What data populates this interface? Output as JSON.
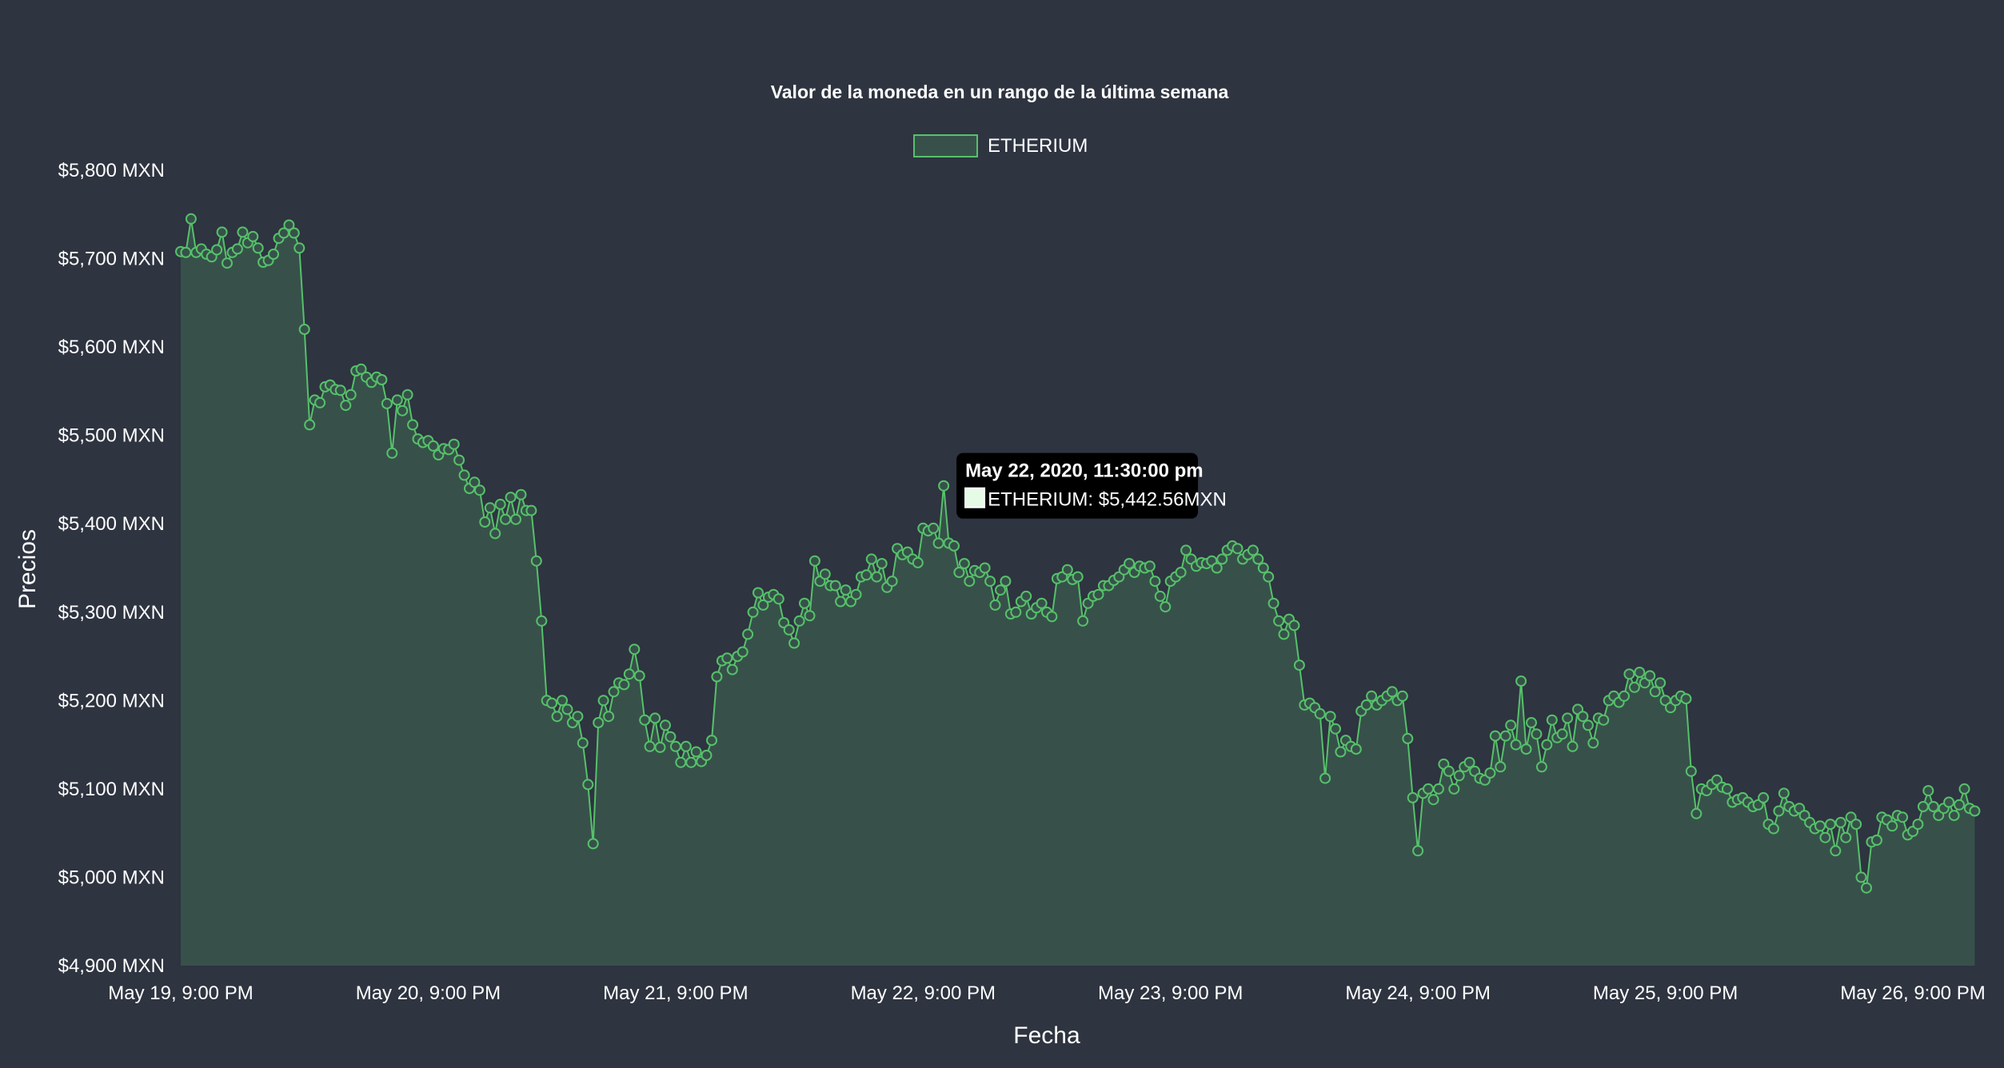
{
  "colors": {
    "background": "#2e3440",
    "line": "#56c16a",
    "fill": "#37514a",
    "tooltip_bg": "#000000",
    "tooltip_swatch": "#e6fbe6"
  },
  "chart_data": {
    "type": "area",
    "title": "Valor de la moneda en un rango de la última semana",
    "xlabel": "Fecha",
    "ylabel": "Precios",
    "legend": {
      "position": "top",
      "entries": [
        "ETHERIUM"
      ]
    },
    "ylim": [
      4900,
      5800
    ],
    "y_ticks": [
      "$5,800 MXN",
      "$5,700 MXN",
      "$5,600 MXN",
      "$5,500 MXN",
      "$5,400 MXN",
      "$5,300 MXN",
      "$5,200 MXN",
      "$5,100 MXN",
      "$5,000 MXN",
      "$4,900 MXN"
    ],
    "x_ticks": [
      "May 19, 9:00 PM",
      "May 20, 9:00 PM",
      "May 21, 9:00 PM",
      "May 22, 9:00 PM",
      "May 23, 9:00 PM",
      "May 24, 9:00 PM",
      "May 25, 9:00 PM",
      "May 26, 9:00 PM"
    ],
    "grid": false,
    "series": [
      {
        "name": "ETHERIUM",
        "sampling": "every 30 minutes",
        "values": [
          5708,
          5707,
          5745,
          5707,
          5711,
          5705,
          5702,
          5710,
          5730,
          5695,
          5707,
          5711,
          5730,
          5718,
          5725,
          5712,
          5696,
          5698,
          5705,
          5723,
          5729,
          5738,
          5729,
          5712,
          5620,
          5512,
          5540,
          5537,
          5555,
          5557,
          5552,
          5551,
          5534,
          5546,
          5573,
          5575,
          5566,
          5560,
          5566,
          5563,
          5536,
          5480,
          5540,
          5528,
          5546,
          5512,
          5496,
          5492,
          5494,
          5488,
          5478,
          5485,
          5484,
          5490,
          5472,
          5455,
          5440,
          5447,
          5438,
          5402,
          5418,
          5389,
          5422,
          5405,
          5430,
          5405,
          5433,
          5415,
          5415,
          5358,
          5290,
          5200,
          5197,
          5182,
          5200,
          5190,
          5175,
          5182,
          5152,
          5105,
          5038,
          5175,
          5200,
          5182,
          5210,
          5220,
          5218,
          5230,
          5258,
          5228,
          5178,
          5148,
          5180,
          5147,
          5172,
          5159,
          5148,
          5130,
          5148,
          5130,
          5142,
          5131,
          5138,
          5155,
          5227,
          5245,
          5248,
          5235,
          5250,
          5255,
          5275,
          5300,
          5322,
          5308,
          5317,
          5320,
          5315,
          5288,
          5280,
          5265,
          5290,
          5310,
          5296,
          5358,
          5335,
          5343,
          5330,
          5330,
          5312,
          5325,
          5312,
          5320,
          5340,
          5342,
          5360,
          5340,
          5355,
          5328,
          5335,
          5372,
          5365,
          5368,
          5360,
          5356,
          5395,
          5392,
          5395,
          5378,
          5443,
          5378,
          5375,
          5345,
          5355,
          5335,
          5347,
          5345,
          5350,
          5335,
          5308,
          5325,
          5335,
          5298,
          5300,
          5312,
          5318,
          5298,
          5305,
          5310,
          5300,
          5295,
          5338,
          5340,
          5348,
          5337,
          5340,
          5290,
          5310,
          5318,
          5320,
          5330,
          5330,
          5336,
          5340,
          5348,
          5355,
          5345,
          5352,
          5350,
          5352,
          5335,
          5318,
          5306,
          5335,
          5340,
          5345,
          5370,
          5360,
          5352,
          5356,
          5355,
          5358,
          5350,
          5360,
          5370,
          5375,
          5372,
          5360,
          5365,
          5370,
          5360,
          5350,
          5340,
          5310,
          5290,
          5275,
          5292,
          5285,
          5240,
          5195,
          5197,
          5192,
          5185,
          5112,
          5182,
          5168,
          5142,
          5155,
          5148,
          5145,
          5188,
          5195,
          5205,
          5195,
          5200,
          5205,
          5210,
          5200,
          5205,
          5157,
          5090,
          5030,
          5095,
          5100,
          5088,
          5100,
          5128,
          5120,
          5100,
          5115,
          5125,
          5130,
          5120,
          5112,
          5110,
          5118,
          5160,
          5125,
          5160,
          5172,
          5150,
          5222,
          5145,
          5175,
          5162,
          5125,
          5150,
          5178,
          5158,
          5162,
          5180,
          5148,
          5190,
          5182,
          5172,
          5152,
          5180,
          5178,
          5200,
          5205,
          5198,
          5205,
          5230,
          5215,
          5232,
          5220,
          5228,
          5210,
          5220,
          5200,
          5192,
          5200,
          5205,
          5202,
          5120,
          5072,
          5100,
          5098,
          5105,
          5110,
          5102,
          5100,
          5085,
          5088,
          5090,
          5085,
          5080,
          5082,
          5090,
          5060,
          5055,
          5075,
          5095,
          5080,
          5075,
          5078,
          5070,
          5062,
          5055,
          5058,
          5045,
          5060,
          5030,
          5062,
          5045,
          5068,
          5060,
          5000,
          4988,
          5040,
          5042,
          5068,
          5065,
          5058,
          5070,
          5068,
          5048,
          5052,
          5060,
          5080,
          5098,
          5080,
          5070,
          5078,
          5085,
          5070,
          5082,
          5100,
          5078,
          5075
        ]
      }
    ],
    "tooltip": {
      "point_index": 148,
      "title": "May 22, 2020, 11:30:00 pm",
      "body": "ETHERIUM: $5,442.56MXN"
    }
  }
}
